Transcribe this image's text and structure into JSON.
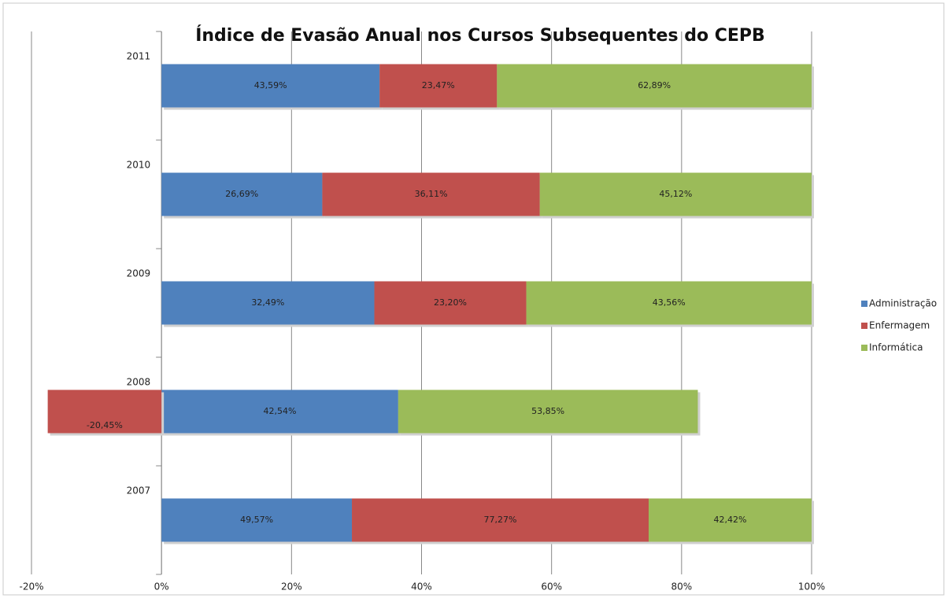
{
  "chart_data": {
    "type": "bar",
    "orientation": "horizontal",
    "stacking": "percent",
    "title": "Índice de Evasão Anual nos Cursos Subsequentes do CEPB",
    "categories": [
      "2011",
      "2010",
      "2009",
      "2008",
      "2007"
    ],
    "series": [
      {
        "name": "Administração",
        "color": "#4f81bd",
        "values": [
          43.59,
          26.69,
          32.49,
          42.54,
          49.57
        ],
        "value_labels": [
          "43,59%",
          "26,69%",
          "32,49%",
          "42,54%",
          "49,57%"
        ]
      },
      {
        "name": "Enfermagem",
        "color": "#c0504d",
        "values": [
          23.47,
          36.11,
          23.2,
          -20.45,
          77.27
        ],
        "value_labels": [
          "23,47%",
          "36,11%",
          "23,20%",
          "-20,45%",
          "77,27%"
        ]
      },
      {
        "name": "Informática",
        "color": "#9bbb59",
        "values": [
          62.89,
          45.12,
          43.56,
          53.85,
          42.42
        ],
        "value_labels": [
          "62,89%",
          "45,12%",
          "43,56%",
          "53,85%",
          "42,42%"
        ]
      }
    ],
    "xlim": [
      -20,
      100
    ],
    "xticks": [
      {
        "value": -20,
        "label": "-20%"
      },
      {
        "value": 0,
        "label": "0%"
      },
      {
        "value": 20,
        "label": "20%"
      },
      {
        "value": 40,
        "label": "40%"
      },
      {
        "value": 60,
        "label": "60%"
      },
      {
        "value": 80,
        "label": "80%"
      },
      {
        "value": 100,
        "label": "100%"
      }
    ],
    "grid": true,
    "legend": "right"
  }
}
